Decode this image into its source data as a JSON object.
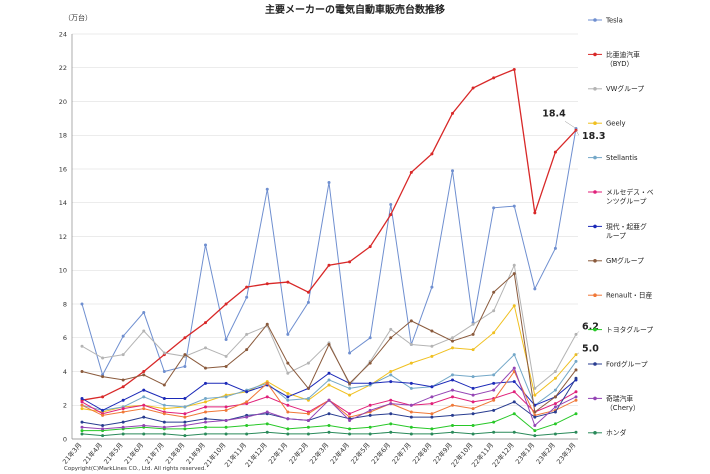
{
  "chart_data": {
    "type": "line",
    "title": "主要メーカーの電気自動車販売台数推移",
    "ylabel": "（万台）",
    "ylim": [
      0,
      24
    ],
    "yticks": [
      0,
      2,
      4,
      6,
      8,
      10,
      12,
      14,
      16,
      18,
      20,
      22,
      24
    ],
    "grid": true,
    "legend_position": "right",
    "copyright": "Copyright(C)MarkLines CO., Ltd. All rights reserved.",
    "categories": [
      "21年3月",
      "21年4月",
      "21年5月",
      "21年6月",
      "21年7月",
      "21年8月",
      "21年9月",
      "21年10月",
      "21年11月",
      "21年12月",
      "22年1月",
      "22年2月",
      "22年3月",
      "22年4月",
      "22年5月",
      "22年6月",
      "22年7月",
      "22年8月",
      "22年9月",
      "22年10月",
      "22年11月",
      "22年12月",
      "23年1月",
      "23年2月",
      "23年3月"
    ],
    "series": [
      {
        "name": "Tesla",
        "color": "#6f8fd0",
        "values": [
          8.0,
          3.8,
          6.1,
          7.5,
          4.0,
          4.3,
          11.5,
          5.9,
          8.4,
          14.8,
          6.2,
          8.1,
          15.2,
          5.1,
          6.0,
          13.9,
          5.6,
          9.0,
          15.9,
          6.9,
          13.7,
          13.8,
          8.9,
          11.3,
          18.4
        ]
      },
      {
        "name": "比亜迪汽車\n（BYD）",
        "color": "#d82828",
        "values": [
          2.3,
          2.5,
          3.1,
          4.0,
          5.0,
          6.0,
          6.9,
          8.0,
          9.0,
          9.2,
          9.3,
          8.7,
          10.3,
          10.5,
          11.4,
          13.3,
          15.8,
          16.9,
          19.3,
          20.8,
          21.4,
          21.9,
          13.4,
          17.0,
          18.3
        ]
      },
      {
        "name": "VWグループ",
        "color": "#b4b4b4",
        "values": [
          5.5,
          4.8,
          5.0,
          6.4,
          5.1,
          4.9,
          5.4,
          4.9,
          6.2,
          6.7,
          3.9,
          4.5,
          5.7,
          3.2,
          4.6,
          6.5,
          5.6,
          5.5,
          6.0,
          6.8,
          7.6,
          10.3,
          3.0,
          4.0,
          6.2
        ]
      },
      {
        "name": "Geely",
        "color": "#f0c020",
        "values": [
          1.8,
          1.6,
          1.9,
          2.0,
          1.8,
          1.9,
          2.2,
          2.6,
          2.8,
          3.4,
          2.7,
          2.3,
          3.2,
          2.6,
          3.2,
          4.0,
          4.5,
          4.9,
          5.4,
          5.3,
          6.3,
          7.9,
          2.6,
          3.6,
          5.0
        ]
      },
      {
        "name": "Stellantis",
        "color": "#74a8c8",
        "values": [
          2.0,
          1.7,
          1.9,
          2.5,
          2.0,
          1.9,
          2.4,
          2.5,
          2.9,
          3.3,
          2.3,
          2.4,
          3.5,
          3.0,
          3.2,
          3.8,
          3.0,
          3.1,
          3.8,
          3.7,
          3.8,
          5.0,
          2.0,
          2.9,
          4.6
        ]
      },
      {
        "name": "メルセデス・ベ\nンツグループ",
        "color": "#e0207a",
        "values": [
          2.2,
          1.5,
          1.8,
          2.0,
          1.6,
          1.5,
          1.9,
          1.9,
          2.1,
          2.5,
          2.0,
          1.6,
          2.3,
          1.5,
          2.0,
          2.3,
          2.0,
          2.1,
          2.5,
          2.2,
          2.4,
          2.8,
          1.6,
          2.1,
          2.8
        ]
      },
      {
        "name": "現代・起亜グ\nループ",
        "color": "#1c2ab8",
        "values": [
          2.4,
          1.7,
          2.3,
          2.9,
          2.4,
          2.4,
          3.3,
          3.3,
          2.8,
          3.2,
          2.5,
          3.0,
          3.9,
          3.3,
          3.3,
          3.4,
          3.3,
          3.1,
          3.5,
          3.0,
          3.3,
          3.4,
          2.0,
          2.5,
          3.5
        ]
      },
      {
        "name": "GMグループ",
        "color": "#8a5a3c",
        "values": [
          4.0,
          3.7,
          3.5,
          3.8,
          3.2,
          5.0,
          4.2,
          4.3,
          5.3,
          6.8,
          4.5,
          3.0,
          5.6,
          3.3,
          4.5,
          6.0,
          7.0,
          6.4,
          5.8,
          6.2,
          8.7,
          9.8,
          1.6,
          2.5,
          4.1
        ]
      },
      {
        "name": "Renault・日産",
        "color": "#f07838",
        "values": [
          2.0,
          1.4,
          1.6,
          1.8,
          1.5,
          1.3,
          1.6,
          1.7,
          2.2,
          3.3,
          1.6,
          1.5,
          2.3,
          1.3,
          1.6,
          2.1,
          1.6,
          1.5,
          2.0,
          1.8,
          2.3,
          4.0,
          1.4,
          1.7,
          2.3
        ]
      },
      {
        "name": "トヨタグループ",
        "color": "#28c828",
        "values": [
          0.5,
          0.5,
          0.6,
          0.7,
          0.6,
          0.6,
          0.7,
          0.7,
          0.8,
          0.9,
          0.6,
          0.7,
          0.8,
          0.6,
          0.7,
          0.9,
          0.7,
          0.6,
          0.8,
          0.8,
          1.0,
          1.5,
          0.5,
          0.9,
          1.5
        ]
      },
      {
        "name": "Fordグループ",
        "color": "#283c90",
        "values": [
          1.0,
          0.8,
          1.0,
          1.3,
          1.0,
          1.0,
          1.2,
          1.1,
          1.4,
          1.5,
          1.2,
          1.1,
          1.5,
          1.2,
          1.4,
          1.5,
          1.3,
          1.3,
          1.4,
          1.5,
          1.7,
          2.2,
          1.3,
          1.6,
          3.6
        ]
      },
      {
        "name": "奇瑞汽車\n（Chery）",
        "color": "#9444b4",
        "values": [
          0.7,
          0.6,
          0.7,
          0.8,
          0.7,
          0.8,
          1.0,
          1.1,
          1.3,
          1.6,
          1.2,
          1.1,
          2.3,
          1.1,
          1.7,
          2.1,
          2.0,
          2.5,
          2.9,
          2.6,
          2.9,
          4.2,
          0.8,
          1.9,
          2.5
        ]
      },
      {
        "name": "ホンダ",
        "color": "#2a8a5a",
        "values": [
          0.3,
          0.2,
          0.3,
          0.3,
          0.3,
          0.2,
          0.3,
          0.3,
          0.3,
          0.4,
          0.3,
          0.3,
          0.4,
          0.3,
          0.3,
          0.4,
          0.3,
          0.3,
          0.4,
          0.3,
          0.4,
          0.4,
          0.2,
          0.3,
          0.4
        ]
      }
    ],
    "annotations": [
      {
        "text": "18.4",
        "series": "Tesla",
        "index": 24
      },
      {
        "text": "18.3",
        "series": "比亜迪汽車\n（BYD）",
        "index": 24
      },
      {
        "text": "6.2",
        "series": "VWグループ",
        "index": 24
      },
      {
        "text": "5.0",
        "series": "Geely",
        "index": 24
      }
    ]
  }
}
